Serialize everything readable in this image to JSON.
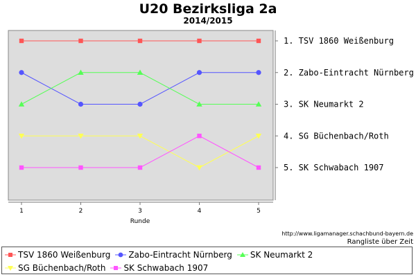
{
  "chart_data": {
    "type": "line",
    "title": "U20 Bezirksliga 2a",
    "subtitle": "2014/2015",
    "xlabel": "Runde",
    "ylabel": "",
    "x": [
      1,
      2,
      3,
      4,
      5
    ],
    "x_tick_labels": [
      "1",
      "2",
      "3",
      "4",
      "5"
    ],
    "ylim": [
      1,
      5
    ],
    "y_inverted": true,
    "grid": false,
    "legend_position": "bottom",
    "right_axis_labels": [
      "1. TSV 1860 Weißenburg",
      "2. Zabo-Eintracht Nürnberg",
      "3. SK Neumarkt 2",
      "4. SG Büchenbach/Roth",
      "5. SK Schwabach 1907"
    ],
    "series": [
      {
        "name": "TSV 1860 Weißenburg",
        "color": "#ff5555",
        "marker": "square",
        "values": [
          1,
          1,
          1,
          1,
          1
        ]
      },
      {
        "name": "Zabo-Eintracht Nürnberg",
        "color": "#5555ff",
        "marker": "circle",
        "values": [
          2,
          3,
          3,
          2,
          2
        ]
      },
      {
        "name": "SK Neumarkt 2",
        "color": "#55ff55",
        "marker": "triangle-up",
        "values": [
          3,
          2,
          2,
          3,
          3
        ]
      },
      {
        "name": "SG Büchenbach/Roth",
        "color": "#ffff55",
        "marker": "triangle-down",
        "values": [
          4,
          4,
          4,
          5,
          4
        ]
      },
      {
        "name": "SK Schwabach 1907",
        "color": "#ff55ff",
        "marker": "square",
        "values": [
          5,
          5,
          5,
          4,
          5
        ]
      }
    ],
    "plot_background": "#dddddd"
  },
  "source": {
    "url": "http://www.ligamanager.schachbund-bayern.de",
    "caption": "Rangliste über Zeit"
  }
}
